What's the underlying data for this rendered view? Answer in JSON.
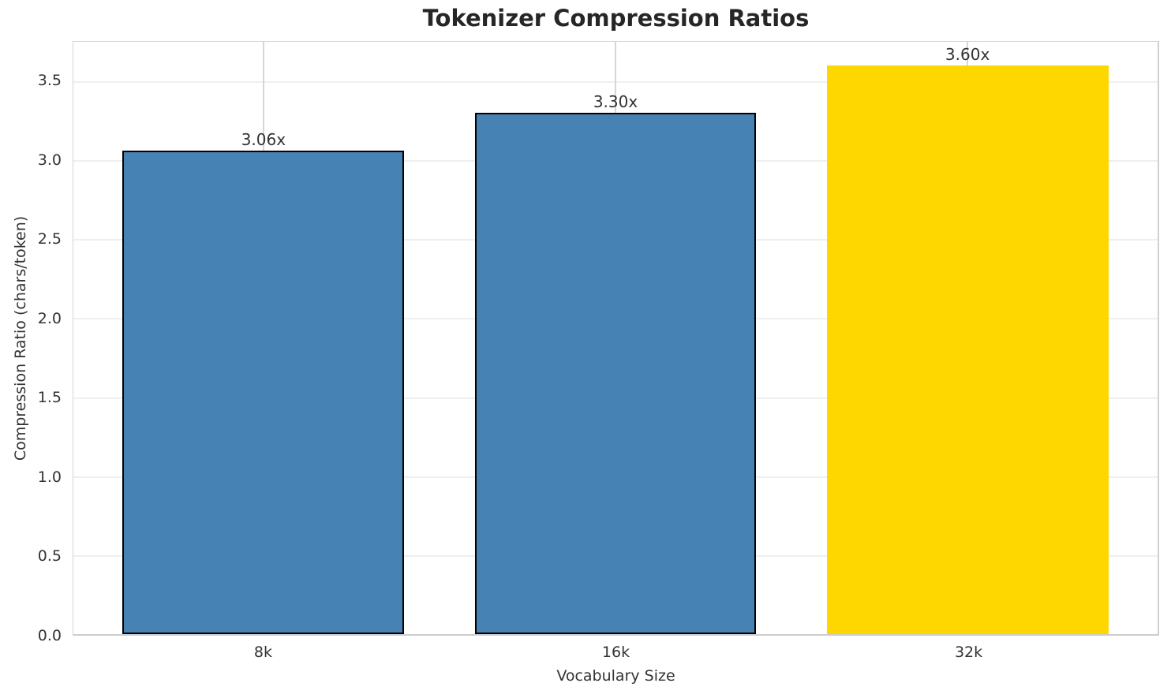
{
  "chart_data": {
    "type": "bar",
    "title": "Tokenizer Compression Ratios",
    "xlabel": "Vocabulary Size",
    "ylabel": "Compression Ratio (chars/token)",
    "categories": [
      "8k",
      "16k",
      "32k"
    ],
    "values": [
      3.06,
      3.3,
      3.6
    ],
    "bar_labels": [
      "3.06x",
      "3.30x",
      "3.60x"
    ],
    "bar_colors": [
      "#4682B4",
      "#4682B4",
      "#FFD700"
    ],
    "bar_edge_colors": [
      "#000000",
      "#000000",
      "none"
    ],
    "ylim": [
      0,
      3.75
    ],
    "yticks": [
      0.0,
      0.5,
      1.0,
      1.5,
      2.0,
      2.5,
      3.0,
      3.5
    ],
    "ytick_labels": [
      "0.0",
      "0.5",
      "1.0",
      "1.5",
      "2.0",
      "2.5",
      "3.0",
      "3.5"
    ],
    "grid": true,
    "legend_position": "none",
    "highlight_color": "#FFD700",
    "base_color": "#4682B4"
  }
}
